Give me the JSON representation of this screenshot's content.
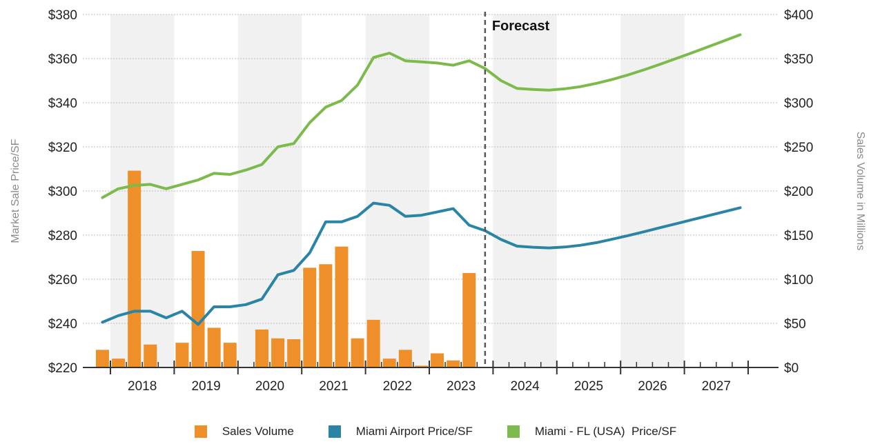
{
  "chart_data": {
    "type": "bar+line",
    "xlabel": "",
    "ylabel_left": "Market Sale Price/SF",
    "ylabel_right": "Sales Volume in Millions",
    "ylim_left": [
      220,
      380
    ],
    "ylim_right": [
      0,
      400
    ],
    "yticks_left": [
      "$380",
      "$360",
      "$340",
      "$320",
      "$300",
      "$280",
      "$260",
      "$240",
      "$220"
    ],
    "yticks_right": [
      "$400",
      "$350",
      "$300",
      "$250",
      "$200",
      "$150",
      "$100",
      "$50",
      "$0"
    ],
    "year_labels": [
      "2018",
      "2019",
      "2020",
      "2021",
      "2022",
      "2023",
      "2024",
      "2025",
      "2026",
      "2027"
    ],
    "forecast_label": "Forecast",
    "forecast_start": "2024 Q1",
    "colors": {
      "sales_volume": "#ee8f2a",
      "miami_airport": "#2a84a6",
      "miami_fl": "#7cba4b",
      "band": "#f1f1f1",
      "forecast_line": "#555555"
    },
    "quarters": [
      "2017 Q4",
      "2018 Q1",
      "2018 Q2",
      "2018 Q3",
      "2018 Q4",
      "2019 Q1",
      "2019 Q2",
      "2019 Q3",
      "2019 Q4",
      "2020 Q1",
      "2020 Q2",
      "2020 Q3",
      "2020 Q4",
      "2021 Q1",
      "2021 Q2",
      "2021 Q3",
      "2021 Q4",
      "2022 Q1",
      "2022 Q2",
      "2022 Q3",
      "2022 Q4",
      "2023 Q1",
      "2023 Q2",
      "2023 Q3",
      "2023 Q4",
      "2024 Q1",
      "2024 Q2",
      "2024 Q3",
      "2024 Q4",
      "2025 Q1",
      "2025 Q2",
      "2025 Q3",
      "2025 Q4",
      "2026 Q1",
      "2026 Q2",
      "2026 Q3",
      "2026 Q4",
      "2027 Q1",
      "2027 Q2",
      "2027 Q3",
      "2027 Q4"
    ],
    "series": [
      {
        "name": "Sales Volume",
        "axis": "right",
        "type": "bar",
        "values": [
          20,
          10,
          223,
          26,
          0,
          28,
          132,
          45,
          28,
          0,
          43,
          33,
          32,
          113,
          117,
          137,
          33,
          54,
          10,
          20,
          2,
          16,
          8,
          107
        ]
      },
      {
        "name": "Miami Airport Price/SF",
        "axis": "left",
        "type": "line",
        "values": [
          240.5,
          243.5,
          245.5,
          245.5,
          242.5,
          245.5,
          239.5,
          247.5,
          247.5,
          248.5,
          251,
          262,
          264,
          272,
          286,
          286,
          288.5,
          294.5,
          293.5,
          288.5,
          289,
          290.5,
          292,
          284.5,
          282,
          278,
          275,
          274.5,
          274.2,
          274.6,
          275.4,
          276.6,
          278.2,
          279.8,
          281.6,
          283.4,
          285.2,
          287,
          288.8,
          290.6,
          292.4
        ]
      },
      {
        "name": "Miami - FL (USA)  Price/SF",
        "axis": "left",
        "type": "line",
        "values": [
          297,
          301,
          302.5,
          303,
          301,
          303,
          305,
          308,
          307.5,
          309.5,
          312,
          320,
          321.5,
          331,
          338,
          341,
          348,
          360.5,
          362.5,
          359,
          358.5,
          358,
          357,
          359,
          355.5,
          350,
          346.5,
          346,
          345.7,
          346.3,
          347.3,
          348.8,
          350.6,
          352.7,
          355,
          357.5,
          360.1,
          362.7,
          365.4,
          368.1,
          370.8
        ]
      }
    ],
    "legend_position": "bottom",
    "grid": true
  }
}
